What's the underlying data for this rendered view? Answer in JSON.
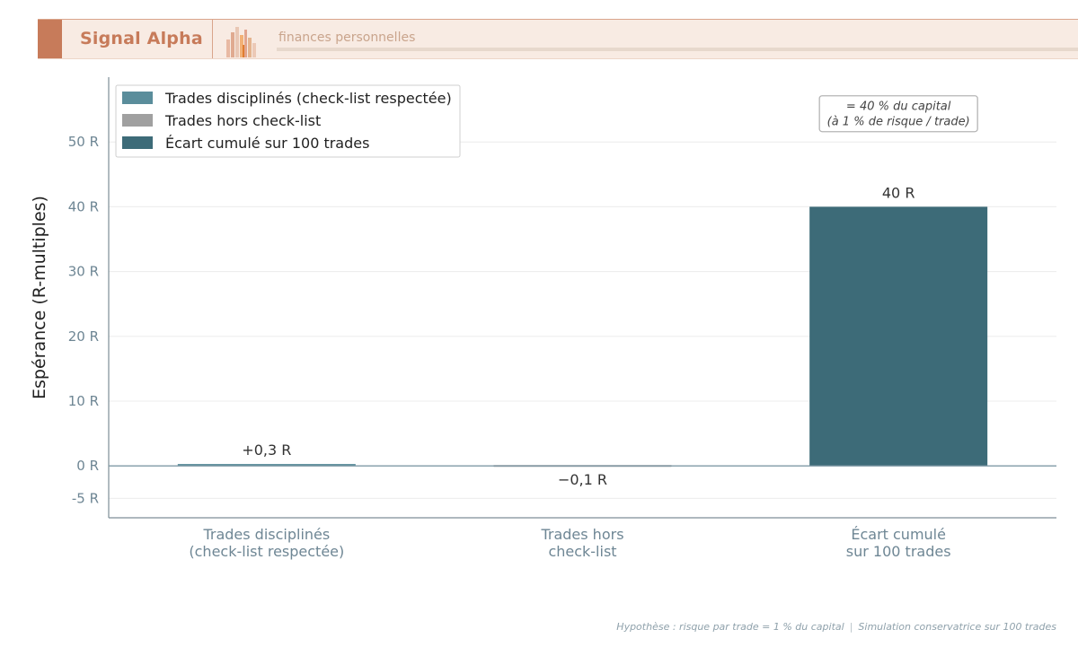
{
  "header": {
    "brand": "Signal Alpha",
    "subtitle": "finances personnelles",
    "logo_icon": "bar-cluster-logo-icon"
  },
  "colors": {
    "disciplined": "#5a8d9b",
    "off_checklist": "#a0a0a0",
    "gap": "#3d6b78",
    "axis": "#7d8e96",
    "tick_text": "#6e8694",
    "header_accent": "#c77b5a"
  },
  "chart_data": {
    "type": "bar",
    "categories": [
      [
        "Trades disciplinés",
        "(check-list respectée)"
      ],
      [
        "Trades hors",
        "check-list"
      ],
      [
        "Écart cumulé",
        "sur 100 trades"
      ]
    ],
    "series": [
      {
        "name": "Trades disciplinés (check-list respectée)",
        "values": [
          0.3,
          null,
          null
        ],
        "labels": [
          "+0,3 R",
          "",
          ""
        ],
        "color": "#5a8d9b"
      },
      {
        "name": "Trades hors check-list",
        "values": [
          null,
          -0.1,
          null
        ],
        "labels": [
          "",
          "−0,1 R",
          ""
        ],
        "color": "#a0a0a0"
      },
      {
        "name": "Écart cumulé sur 100 trades",
        "values": [
          null,
          null,
          40
        ],
        "labels": [
          "",
          "",
          "40 R"
        ],
        "color": "#3d6b78"
      }
    ],
    "ylabel": "Espérance (R-multiples)",
    "ylim": [
      -8,
      60
    ],
    "yticks": [
      {
        "value": -5,
        "label": "-5 R"
      },
      {
        "value": 0,
        "label": "0 R"
      },
      {
        "value": 10,
        "label": "10 R"
      },
      {
        "value": 20,
        "label": "20 R"
      },
      {
        "value": 30,
        "label": "30 R"
      },
      {
        "value": 40,
        "label": "40 R"
      },
      {
        "value": 50,
        "label": "50 R"
      }
    ],
    "grid": true,
    "legend_position": "top-left",
    "annotation": {
      "lines": [
        "= 40 % du capital",
        "(à 1 % de risque / trade)"
      ],
      "category_index": 2,
      "y": 54.5
    }
  },
  "footer": {
    "left": "Hypothèse : risque par trade = 1 % du capital",
    "separator": "|",
    "right": "Simulation conservatrice sur 100 trades"
  }
}
